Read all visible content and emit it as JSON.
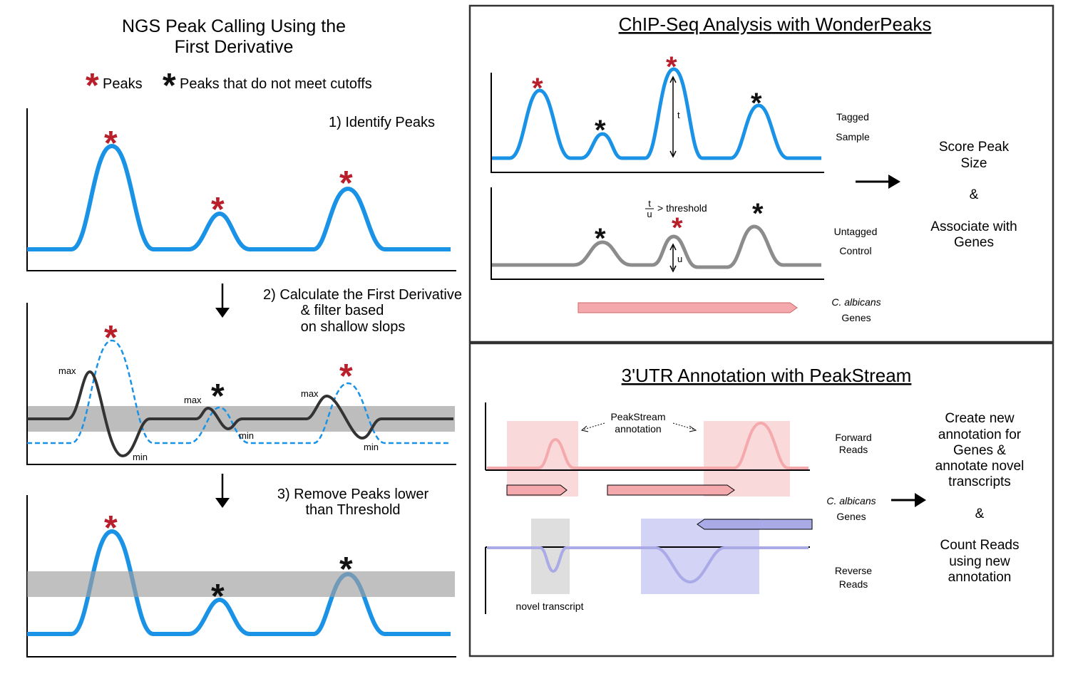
{
  "left": {
    "title_line1": "NGS Peak Calling Using the",
    "title_line2": "First Derivative",
    "legend": {
      "star": "*",
      "peaks": "Peaks",
      "below_cutoff": "Peaks that do not meet cutoffs"
    },
    "step1": "1) Identify Peaks",
    "step2_line1": "2) Calculate the First Derivative",
    "step2_line2": "& filter based",
    "step2_line3": "on shallow slops",
    "step3_line1": "3) Remove Peaks lower",
    "step3_line2": "than Threshold",
    "max": "max",
    "min": "min"
  },
  "chipseq": {
    "title": "ChIP-Seq Analysis with WonderPeaks",
    "t": "t",
    "u": "u",
    "frac_num": "t",
    "frac_den": "u",
    "threshold": "> threshold",
    "tagged_1": "Tagged",
    "tagged_2": "Sample",
    "untagged_1": "Untagged",
    "untagged_2": "Control",
    "genes_species": "C. albicans",
    "genes_word": "Genes",
    "score_1": "Score Peak",
    "score_2": "Size",
    "amp": "&",
    "assoc_1": "Associate with",
    "assoc_2": "Genes"
  },
  "utr": {
    "title": "3'UTR Annotation with PeakStream",
    "annot_1": "PeakStream",
    "annot_2": "annotation",
    "forward_1": "Forward",
    "forward_2": "Reads",
    "genes_species": "C. albicans",
    "genes_word": "Genes",
    "reverse_1": "Reverse",
    "reverse_2": "Reads",
    "novel": "novel transcript",
    "create_1": "Create new",
    "create_2": "annotation for",
    "create_3": "Genes &",
    "create_4": "annotate novel",
    "create_5": "transcripts",
    "amp": "&",
    "count_1": "Count Reads",
    "count_2": "using new",
    "count_3": "annotation"
  },
  "colors": {
    "blue": "#1a93e6",
    "red_star": "#b81f2a",
    "gray_band": "#bdbdbd",
    "gray_curve": "#8c8c8c",
    "pink": "#f4a9ad",
    "pink_box": "#f9d5d6",
    "purple": "#a9aae6",
    "purple_box": "#d3d3f5"
  }
}
